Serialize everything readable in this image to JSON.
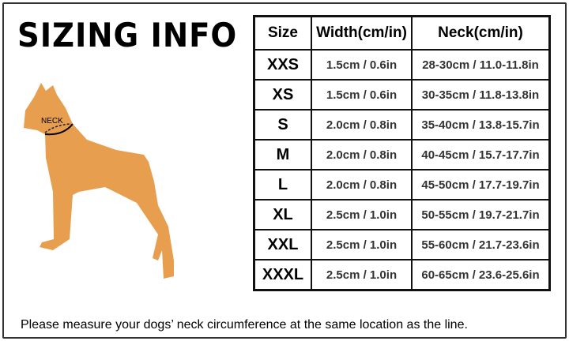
{
  "title": "SIZING INFO",
  "diagram": {
    "neck_label": "NECK",
    "dog_color": "#E79E4F"
  },
  "table": {
    "headers": [
      "Size",
      "Width(cm/in)",
      "Neck(cm/in)"
    ],
    "rows": [
      {
        "size": "XXS",
        "width": "1.5cm / 0.6in",
        "neck": "28-30cm / 11.0-11.8in"
      },
      {
        "size": "XS",
        "width": "1.5cm / 0.6in",
        "neck": "30-35cm / 11.8-13.8in"
      },
      {
        "size": "S",
        "width": "2.0cm / 0.8in",
        "neck": "35-40cm / 13.8-15.7in"
      },
      {
        "size": "M",
        "width": "2.0cm / 0.8in",
        "neck": "40-45cm / 15.7-17.7in"
      },
      {
        "size": "L",
        "width": "2.0cm / 0.8in",
        "neck": "45-50cm / 17.7-19.7in"
      },
      {
        "size": "XL",
        "width": "2.5cm / 1.0in",
        "neck": "50-55cm / 19.7-21.7in"
      },
      {
        "size": "XXL",
        "width": "2.5cm / 1.0in",
        "neck": "55-60cm / 21.7-23.6in"
      },
      {
        "size": "XXXL",
        "width": "2.5cm / 1.0in",
        "neck": "60-65cm / 23.6-25.6in"
      }
    ]
  },
  "note": "Please measure your dogs’  neck circumference at the same location as the line."
}
